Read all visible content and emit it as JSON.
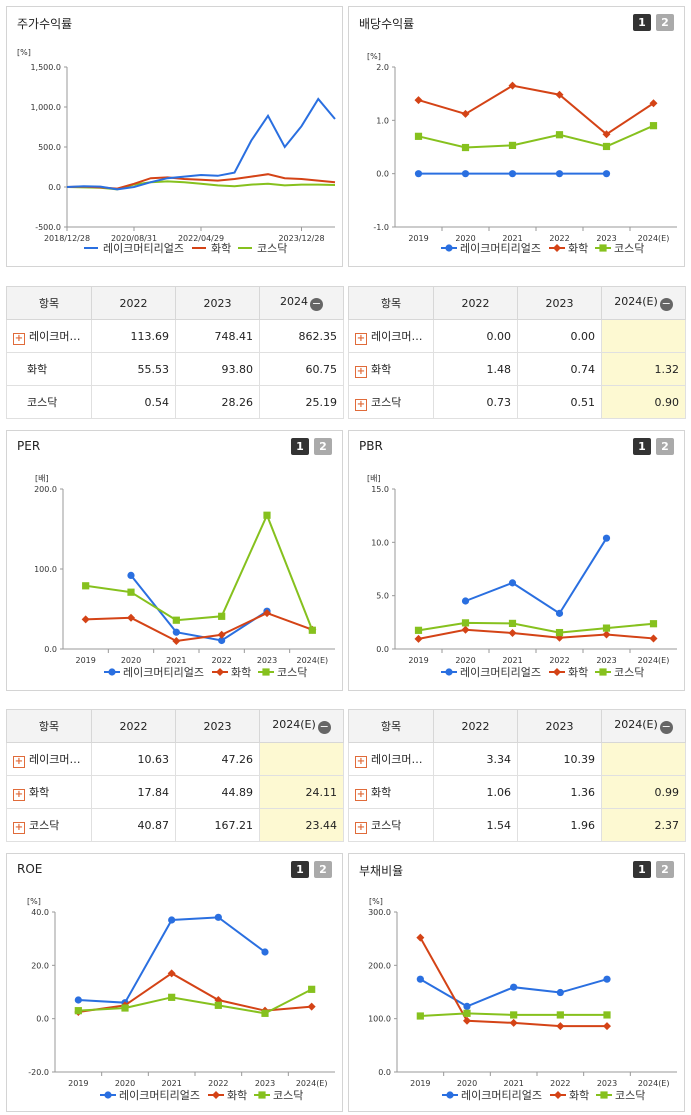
{
  "colors": {
    "lake": "#2a6fe0",
    "chem": "#d44316",
    "kosdaq": "#86c11e"
  },
  "legend": [
    "레이크머티리얼즈",
    "화학",
    "코스닥"
  ],
  "price_chart": {
    "title": "주가수익률",
    "unit": "[%]",
    "yticks": [
      "1,500.0",
      "1,000.0",
      "500.0",
      "0.0",
      "-500.0"
    ],
    "xticks": [
      "2018/12/28",
      "2020/08/31",
      "2022/04/29",
      "2023/12/28"
    ],
    "chart_data": {
      "type": "line",
      "x": [
        "2018/12/28",
        "2019/06",
        "2019/12",
        "2020/06",
        "2020/08/31",
        "2020/12",
        "2021/06",
        "2021/12",
        "2022/04/29",
        "2022/09",
        "2022/12",
        "2023/03",
        "2023/06",
        "2023/09",
        "2023/12/28",
        "2024/03",
        "2024/06"
      ],
      "ylim": [
        -500,
        1500
      ],
      "series": [
        {
          "name": "레이크머티리얼즈",
          "values": [
            0,
            10,
            5,
            -30,
            0,
            60,
            110,
            130,
            150,
            140,
            180,
            580,
            890,
            500,
            760,
            1100,
            850
          ]
        },
        {
          "name": "화학",
          "values": [
            0,
            5,
            -5,
            -20,
            40,
            110,
            120,
            100,
            90,
            80,
            100,
            130,
            160,
            110,
            100,
            80,
            60
          ]
        },
        {
          "name": "코스닥",
          "values": [
            0,
            -5,
            -10,
            -30,
            30,
            60,
            70,
            60,
            40,
            20,
            10,
            30,
            40,
            20,
            30,
            30,
            25
          ]
        }
      ]
    }
  },
  "div_chart": {
    "title": "배당수익률",
    "unit": "[%]",
    "buttons": [
      "1",
      "2"
    ],
    "yticks": [
      "2.0",
      "1.0",
      "0.0",
      "-1.0"
    ],
    "chart_data": {
      "type": "line",
      "categories": [
        "2019",
        "2020",
        "2021",
        "2022",
        "2023",
        "2024(E)"
      ],
      "ylim": [
        -1,
        2
      ],
      "series": [
        {
          "name": "레이크머티리얼즈",
          "values": [
            0,
            0,
            0,
            0,
            0,
            null
          ]
        },
        {
          "name": "화학",
          "values": [
            1.38,
            1.12,
            1.65,
            1.48,
            0.74,
            1.32
          ]
        },
        {
          "name": "코스닥",
          "values": [
            0.7,
            0.49,
            0.53,
            0.73,
            0.51,
            0.9
          ]
        }
      ]
    }
  },
  "price_table": {
    "headers": [
      "항목",
      "2022",
      "2023",
      "2024"
    ],
    "rows": [
      {
        "name": "레이크머…",
        "v": [
          "113.69",
          "748.41",
          "862.35"
        ]
      },
      {
        "name": "화학",
        "v": [
          "55.53",
          "93.80",
          "60.75"
        ]
      },
      {
        "name": "코스닥",
        "v": [
          "0.54",
          "28.26",
          "25.19"
        ]
      }
    ]
  },
  "div_table": {
    "headers": [
      "항목",
      "2022",
      "2023",
      "2024(E)"
    ],
    "rows": [
      {
        "name": "레이크머…",
        "v": [
          "0.00",
          "0.00",
          ""
        ]
      },
      {
        "name": "화학",
        "v": [
          "1.48",
          "0.74",
          "1.32"
        ]
      },
      {
        "name": "코스닥",
        "v": [
          "0.73",
          "0.51",
          "0.90"
        ]
      }
    ]
  },
  "per_chart": {
    "title": "PER",
    "unit": "[배]",
    "buttons": [
      "1",
      "2"
    ],
    "yticks": [
      "200.0",
      "100.0",
      "0.0"
    ],
    "chart_data": {
      "type": "line",
      "categories": [
        "2019",
        "2020",
        "2021",
        "2022",
        "2023",
        "2024(E)"
      ],
      "ylim": [
        0,
        200
      ],
      "series": [
        {
          "name": "레이크머티리얼즈",
          "values": [
            null,
            92,
            21,
            10.63,
            47.26,
            null
          ]
        },
        {
          "name": "화학",
          "values": [
            37,
            39,
            10,
            17.84,
            44.89,
            24.11
          ]
        },
        {
          "name": "코스닥",
          "values": [
            79,
            71,
            36,
            40.87,
            167.21,
            23.44
          ]
        }
      ]
    }
  },
  "pbr_chart": {
    "title": "PBR",
    "unit": "[배]",
    "buttons": [
      "1",
      "2"
    ],
    "yticks": [
      "15.0",
      "10.0",
      "5.0",
      "0.0"
    ],
    "chart_data": {
      "type": "line",
      "categories": [
        "2019",
        "2020",
        "2021",
        "2022",
        "2023",
        "2024(E)"
      ],
      "ylim": [
        0,
        15
      ],
      "series": [
        {
          "name": "레이크머티리얼즈",
          "values": [
            null,
            4.5,
            6.2,
            3.34,
            10.39,
            null
          ]
        },
        {
          "name": "화학",
          "values": [
            0.95,
            1.8,
            1.5,
            1.06,
            1.36,
            0.99
          ]
        },
        {
          "name": "코스닥",
          "values": [
            1.75,
            2.45,
            2.4,
            1.54,
            1.96,
            2.37
          ]
        }
      ]
    }
  },
  "per_table": {
    "headers": [
      "항목",
      "2022",
      "2023",
      "2024(E)"
    ],
    "rows": [
      {
        "name": "레이크머…",
        "v": [
          "10.63",
          "47.26",
          ""
        ]
      },
      {
        "name": "화학",
        "v": [
          "17.84",
          "44.89",
          "24.11"
        ]
      },
      {
        "name": "코스닥",
        "v": [
          "40.87",
          "167.21",
          "23.44"
        ]
      }
    ]
  },
  "pbr_table": {
    "headers": [
      "항목",
      "2022",
      "2023",
      "2024(E)"
    ],
    "rows": [
      {
        "name": "레이크머…",
        "v": [
          "3.34",
          "10.39",
          ""
        ]
      },
      {
        "name": "화학",
        "v": [
          "1.06",
          "1.36",
          "0.99"
        ]
      },
      {
        "name": "코스닥",
        "v": [
          "1.54",
          "1.96",
          "2.37"
        ]
      }
    ]
  },
  "roe_chart": {
    "title": "ROE",
    "unit": "[%]",
    "buttons": [
      "1",
      "2"
    ],
    "yticks": [
      "40.0",
      "20.0",
      "0.0",
      "-20.0"
    ],
    "chart_data": {
      "type": "line",
      "categories": [
        "2019",
        "2020",
        "2021",
        "2022",
        "2023",
        "2024(E)"
      ],
      "ylim": [
        -20,
        40
      ],
      "series": [
        {
          "name": "레이크머티리얼즈",
          "values": [
            7,
            6,
            37,
            38,
            25,
            null
          ]
        },
        {
          "name": "화학",
          "values": [
            2.5,
            5,
            17,
            7,
            3,
            4.5
          ]
        },
        {
          "name": "코스닥",
          "values": [
            3,
            4,
            8,
            5,
            2,
            11
          ]
        }
      ]
    }
  },
  "debt_chart": {
    "title": "부채비율",
    "unit": "[%]",
    "buttons": [
      "1",
      "2"
    ],
    "yticks": [
      "300.0",
      "200.0",
      "100.0",
      "0.0"
    ],
    "chart_data": {
      "type": "line",
      "categories": [
        "2019",
        "2020",
        "2021",
        "2022",
        "2023",
        "2024(E)"
      ],
      "ylim": [
        0,
        300
      ],
      "series": [
        {
          "name": "레이크머티리얼즈",
          "values": [
            174,
            123,
            159,
            149,
            174,
            null
          ]
        },
        {
          "name": "화학",
          "values": [
            252,
            96,
            92,
            86,
            86,
            null
          ]
        },
        {
          "name": "코스닥",
          "values": [
            105,
            110,
            107,
            107,
            107,
            null
          ]
        }
      ]
    }
  }
}
